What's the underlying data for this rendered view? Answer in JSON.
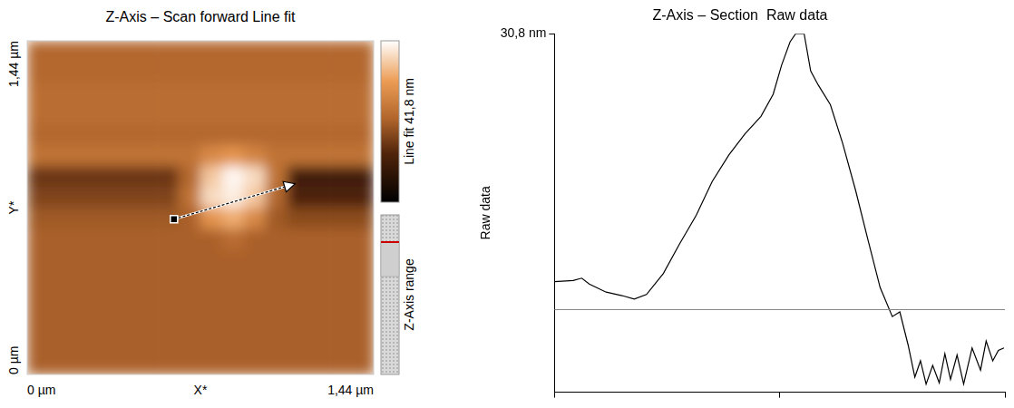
{
  "chart_data": [
    {
      "type": "heatmap",
      "title": "Z-Axis – Scan forward Line fit",
      "x_label": "X*",
      "y_label": "Y*",
      "xlim": [
        0,
        1.44
      ],
      "ylim": [
        0,
        1.44
      ],
      "xticks": [
        {
          "value": 0,
          "label": "0 µm"
        },
        {
          "value": 1.44,
          "label": "1,44 µm"
        }
      ],
      "yticks": [
        {
          "value": 0,
          "label": "0 µm"
        },
        {
          "value": 1.44,
          "label": "1,44 µm"
        }
      ],
      "cells": [
        [
          22,
          22,
          22,
          22,
          22,
          22,
          22,
          22,
          22,
          22,
          22,
          22,
          22,
          22,
          22,
          22
        ],
        [
          22,
          22,
          22,
          22,
          22,
          22,
          22,
          22,
          22,
          22,
          22,
          22,
          22,
          22,
          22,
          22
        ],
        [
          23,
          23,
          23,
          23,
          23,
          23,
          23,
          23,
          23,
          23,
          23,
          23,
          23,
          23,
          23,
          23
        ],
        [
          23,
          23,
          23,
          23,
          23,
          23,
          23,
          23,
          23,
          23,
          23,
          23,
          23,
          23,
          23,
          23
        ],
        [
          22,
          22,
          22,
          22,
          22,
          22,
          22,
          22,
          22,
          22,
          22,
          22,
          22,
          22,
          22,
          22
        ],
        [
          24,
          24,
          24,
          24,
          24,
          24,
          24,
          24,
          28,
          30,
          27,
          24,
          24,
          24,
          24,
          24
        ],
        [
          15,
          15,
          15,
          15,
          15,
          15,
          15,
          22,
          36,
          41,
          38,
          24,
          10,
          10,
          10,
          10
        ],
        [
          17,
          17,
          17,
          17,
          17,
          17,
          17,
          24,
          38,
          40,
          36,
          22,
          12,
          12,
          12,
          12
        ],
        [
          20,
          20,
          20,
          20,
          20,
          20,
          20,
          21,
          30,
          33,
          28,
          20,
          18,
          18,
          18,
          18
        ],
        [
          21,
          21,
          21,
          21,
          21,
          21,
          21,
          21,
          21,
          23,
          21,
          21,
          21,
          21,
          21,
          21
        ],
        [
          21,
          21,
          21,
          21,
          21,
          21,
          21,
          21,
          21,
          21,
          21,
          21,
          21,
          21,
          21,
          21
        ],
        [
          21,
          21,
          21,
          21,
          21,
          21,
          21,
          21,
          21,
          21,
          21,
          21,
          21,
          21,
          21,
          21
        ],
        [
          21,
          21,
          21,
          21,
          21,
          21,
          21,
          21,
          21,
          21,
          21,
          21,
          21,
          21,
          21,
          21
        ],
        [
          21,
          21,
          21,
          21,
          21,
          21,
          21,
          21,
          21,
          21,
          21,
          21,
          21,
          21,
          21,
          21
        ],
        [
          21,
          21,
          21,
          21,
          21,
          21,
          21,
          21,
          21,
          21,
          21,
          21,
          21,
          21,
          21,
          21
        ],
        [
          21,
          21,
          21,
          21,
          21,
          21,
          21,
          21,
          21,
          21,
          21,
          21,
          21,
          21,
          21,
          21
        ]
      ],
      "colorbar_range": [
        0,
        41.8
      ],
      "colorbar_label": "Line fit 41,8 nm",
      "z_range_label": "Z-Axis range",
      "section_line": {
        "start": [
          0.61,
          0.67
        ],
        "end": [
          1.07,
          0.81
        ]
      }
    },
    {
      "type": "line",
      "title": "Z-Axis – Section  Raw data",
      "y_label": "Raw data",
      "xlim": [
        0,
        0.48
      ],
      "xticks": [
        0,
        0.24,
        0.48
      ],
      "ylim": [
        0,
        30.8
      ],
      "yticks": [
        {
          "value": 30.8,
          "label": "30,8 nm"
        }
      ],
      "tick_labels": "y",
      "grid": false,
      "color": "#000000",
      "reference_line": 7.1,
      "x": [
        0,
        0.02,
        0.029,
        0.037,
        0.055,
        0.072,
        0.085,
        0.098,
        0.116,
        0.133,
        0.151,
        0.168,
        0.186,
        0.203,
        0.22,
        0.233,
        0.242,
        0.251,
        0.257,
        0.266,
        0.273,
        0.281,
        0.294,
        0.307,
        0.321,
        0.334,
        0.347,
        0.36,
        0.368,
        0.377,
        0.384,
        0.39,
        0.396,
        0.403,
        0.41,
        0.416,
        0.422,
        0.429,
        0.436,
        0.445,
        0.454,
        0.46,
        0.467,
        0.473,
        0.479
      ],
      "values": [
        9.5,
        9.6,
        9.8,
        9.3,
        8.6,
        8.3,
        8.0,
        8.4,
        10.2,
        12.7,
        15.2,
        18.1,
        20.4,
        22.2,
        23.7,
        25.6,
        28.1,
        30.1,
        30.8,
        30.8,
        27.6,
        26.4,
        24.7,
        21.4,
        17.3,
        13.1,
        9.0,
        6.5,
        6.9,
        4.0,
        1.3,
        2.7,
        0.7,
        2.3,
        0.8,
        3.3,
        1.1,
        3.2,
        0.7,
        3.8,
        1.9,
        4.4,
        2.7,
        3.6,
        3.8
      ]
    }
  ]
}
